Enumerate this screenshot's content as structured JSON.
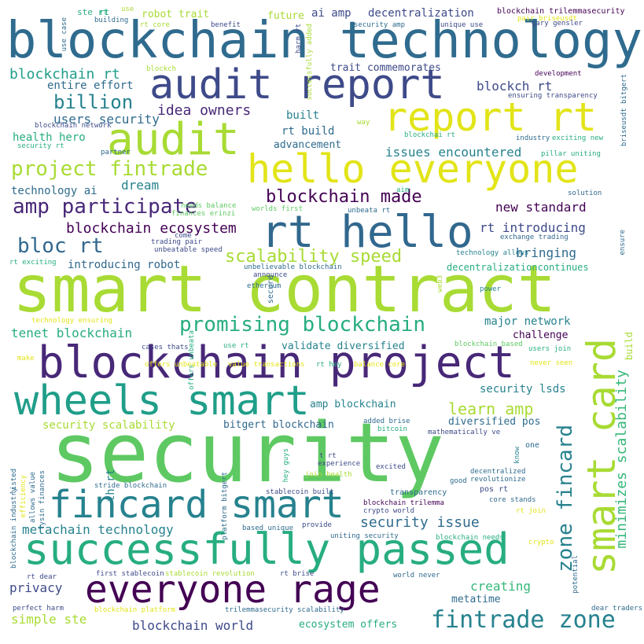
{
  "palette": {
    "background": "#ffffff",
    "c1": "#2f6b8e",
    "c2": "#a8db34",
    "c3": "#e2e418",
    "c4": "#3e4a89",
    "c5": "#440154",
    "c6": "#27ad81",
    "c7": "#5ec962",
    "c8": "#1f9e89",
    "c9": "#26828e",
    "c10": "#482878",
    "c11": "#31688e",
    "c12": "#35b779"
  },
  "words": [
    "blockchain technology",
    "audit report",
    "report rt",
    "audit",
    "hello everyone",
    "project fintrade",
    "rt hello",
    "amp participate",
    "blockchain made",
    "smart contract",
    "blockchain project",
    "wheels smart",
    "smart card",
    "security",
    "fincard smart",
    "successfully passed",
    "everyone rage",
    "fintrade zone",
    "zone fincard",
    "minimizes scalability",
    "promising blockchain",
    "scalability speed",
    "bloc rt",
    "blockchain ecosystem",
    "billion",
    "users security",
    "blockchain rt",
    "entire effort",
    "health hero",
    "technology ai",
    "dream",
    "idea owners",
    "built",
    "rt build",
    "advancement",
    "issues encountered",
    "ai amp",
    "decentralization",
    "robot trait",
    "future",
    "trait commemorates",
    "blockch rt",
    "new standard",
    "rt introducing",
    "bringing",
    "introducing robot",
    "decentralizationcontinues",
    "tenet blockchain",
    "validate diversified",
    "major network",
    "challenge",
    "security lsds",
    "learn amp",
    "amp blockchain",
    "diversified pos",
    "bitgert blockchain",
    "security scalability",
    "security issue",
    "metachain technology",
    "privacy",
    "creating",
    "metatime",
    "simple ste",
    "blockchain world",
    "ecosystem offers",
    "ste rt",
    "use",
    "building",
    "rt core",
    "benefit",
    "blockchain trilemmasecurity",
    "pair briseusdt",
    "security amp",
    "unique use",
    "gary gensler",
    "development",
    "ensuring transparency",
    "briseusdt bitgert",
    "exciting new",
    "industry",
    "pillar uniting",
    "solution",
    "exchange trading",
    "technology allows",
    "ensure",
    "power",
    "web3",
    "secure",
    "ethereum",
    "announce",
    "unbelievable blockchain",
    "trading pair",
    "unbeatable speed",
    "come",
    "needs balance",
    "finances erinzi",
    "worlds first",
    "unbeata rt",
    "aim",
    "blockchai rt",
    "way",
    "harm rt",
    "successfully added",
    "blockchain network",
    "security rt",
    "partner",
    "rt exciting",
    "blockch",
    "technology ensuring",
    "offers unbeata",
    "use rt",
    "rt hey",
    "cases thats",
    "blockchain based",
    "users join",
    "never seen",
    "make",
    "offers unbeatable",
    "value transactions",
    "balance core",
    "added brise",
    "bitcoin",
    "mathematically ve",
    "one",
    "know",
    "th rt",
    "hey guys",
    "t rt",
    "experience",
    "excited",
    "join health",
    "decentralized",
    "revolutionize",
    "pos rt",
    "good",
    "transparency",
    "core stands",
    "blockchain trilemma",
    "crypto world",
    "rt join",
    "stablecoin built",
    "lysin finances",
    "allows value",
    "efficiency",
    "platform bitgert",
    "blockchain industry",
    "listed",
    "provide",
    "based unique",
    "uniting security",
    "blockchain needs",
    "crypto",
    "potential",
    "first stablecoin",
    "stablecoin revolution",
    "rt brise",
    "world never",
    "rt dear",
    "perfect harm",
    "blockchain platform",
    "trilemmasecurity scalability",
    "dear traders",
    "stride blockchain",
    "use case",
    "rt",
    "build"
  ]
}
